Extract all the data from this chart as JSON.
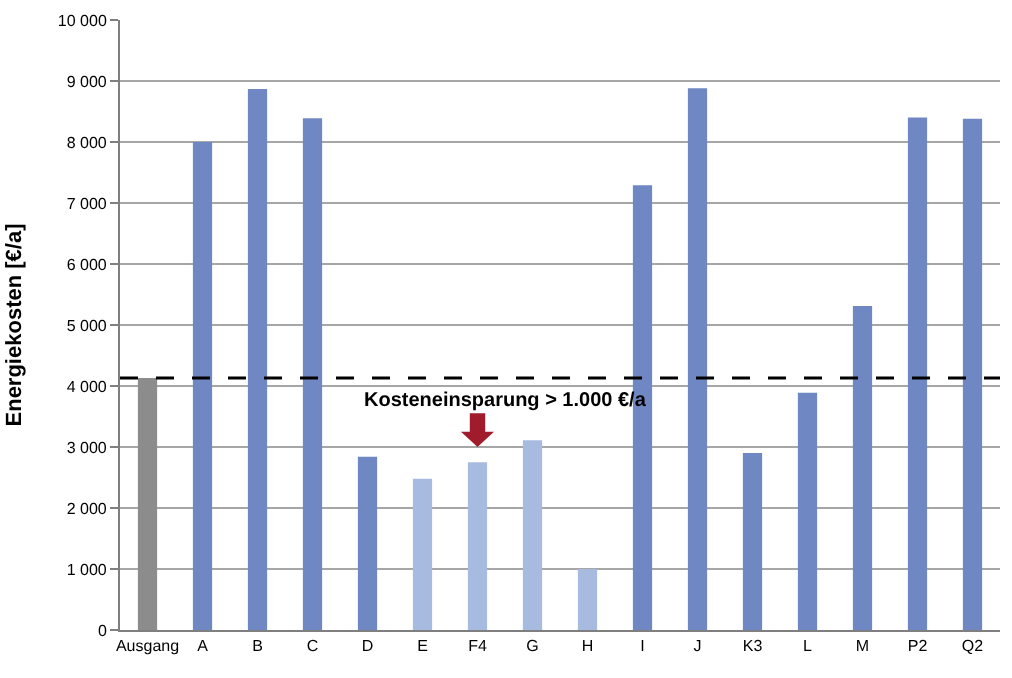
{
  "chart_data": {
    "type": "bar",
    "ylabel": "Energiekosten [€/a]",
    "categories": [
      "Ausgang",
      "A",
      "B",
      "C",
      "D",
      "E",
      "F4",
      "G",
      "H",
      "I",
      "J",
      "K3",
      "L",
      "M",
      "P2",
      "Q2"
    ],
    "values": [
      4130,
      8000,
      8870,
      8390,
      2840,
      2480,
      2750,
      3110,
      1000,
      7290,
      8880,
      2900,
      3890,
      5310,
      8400,
      8380
    ],
    "colors": [
      "#8c8c8c",
      "#6f88c4",
      "#6f88c4",
      "#6f88c4",
      "#6f88c4",
      "#a7bbe0",
      "#a7bbe0",
      "#a7bbe0",
      "#a7bbe0",
      "#6f88c4",
      "#6f88c4",
      "#6f88c4",
      "#6f88c4",
      "#6f88c4",
      "#6f88c4",
      "#6f88c4"
    ],
    "ylim": [
      0,
      10000
    ],
    "yticks": [
      0,
      {
        "value": 1000,
        "label": "1 000"
      },
      {
        "value": 2000,
        "label": "2 000"
      },
      {
        "value": 3000,
        "label": "3 000"
      },
      {
        "value": 4000,
        "label": "4 000"
      },
      {
        "value": 5000,
        "label": "5 000"
      },
      {
        "value": 6000,
        "label": "6 000"
      },
      {
        "value": 7000,
        "label": "7 000"
      },
      {
        "value": 8000,
        "label": "8 000"
      },
      {
        "value": 9000,
        "label": "9 000"
      },
      {
        "value": 10000,
        "label": "10 000"
      }
    ],
    "ref_lines": [
      {
        "axis": "y",
        "value": 4130,
        "label": "Kosteneinsparung > 1.000 €/a",
        "color": "#000000",
        "line_style": "dashed"
      }
    ],
    "grid": "y",
    "legend": false
  }
}
